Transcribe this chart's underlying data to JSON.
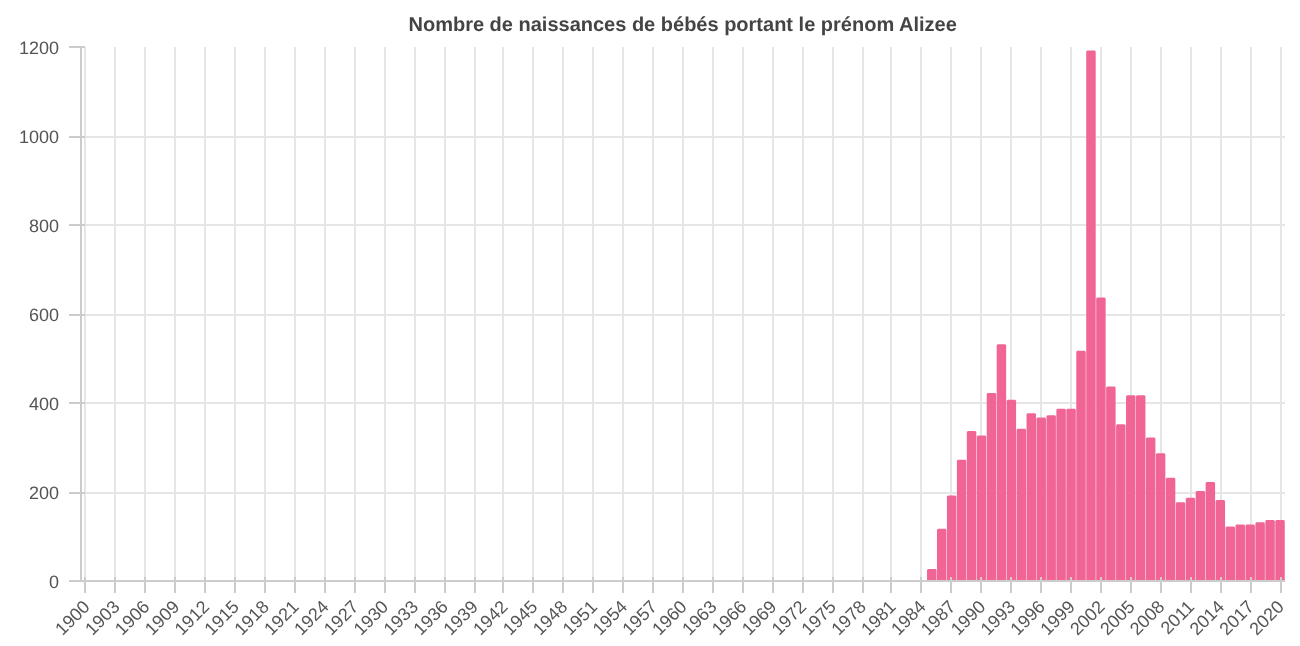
{
  "chart_data": {
    "type": "bar",
    "title": "Nombre de naissances de bébés portant le prénom Alizee",
    "x": [
      1900,
      1901,
      1902,
      1903,
      1904,
      1905,
      1906,
      1907,
      1908,
      1909,
      1910,
      1911,
      1912,
      1913,
      1914,
      1915,
      1916,
      1917,
      1918,
      1919,
      1920,
      1921,
      1922,
      1923,
      1924,
      1925,
      1926,
      1927,
      1928,
      1929,
      1930,
      1931,
      1932,
      1933,
      1934,
      1935,
      1936,
      1937,
      1938,
      1939,
      1940,
      1941,
      1942,
      1943,
      1944,
      1945,
      1946,
      1947,
      1948,
      1949,
      1950,
      1951,
      1952,
      1953,
      1954,
      1955,
      1956,
      1957,
      1958,
      1959,
      1960,
      1961,
      1962,
      1963,
      1964,
      1965,
      1966,
      1967,
      1968,
      1969,
      1970,
      1971,
      1972,
      1973,
      1974,
      1975,
      1976,
      1977,
      1978,
      1979,
      1980,
      1981,
      1982,
      1983,
      1984,
      1985,
      1986,
      1987,
      1988,
      1989,
      1990,
      1991,
      1992,
      1993,
      1994,
      1995,
      1996,
      1997,
      1998,
      1999,
      2000,
      2001,
      2002,
      2003,
      2004,
      2005,
      2006,
      2007,
      2008,
      2009,
      2010,
      2011,
      2012,
      2013,
      2014,
      2015,
      2016,
      2017,
      2018,
      2019,
      2020
    ],
    "values": [
      0,
      0,
      0,
      0,
      0,
      0,
      0,
      0,
      0,
      0,
      0,
      0,
      0,
      0,
      0,
      0,
      0,
      0,
      0,
      0,
      0,
      0,
      0,
      0,
      0,
      0,
      0,
      0,
      0,
      0,
      0,
      0,
      0,
      0,
      0,
      0,
      0,
      0,
      0,
      0,
      0,
      0,
      0,
      0,
      0,
      0,
      0,
      0,
      0,
      0,
      0,
      0,
      0,
      0,
      0,
      0,
      0,
      0,
      0,
      0,
      0,
      0,
      0,
      0,
      0,
      0,
      0,
      0,
      0,
      0,
      0,
      0,
      0,
      0,
      0,
      0,
      0,
      0,
      0,
      0,
      0,
      0,
      0,
      0,
      0,
      25,
      115,
      190,
      270,
      335,
      325,
      420,
      530,
      405,
      340,
      375,
      365,
      370,
      385,
      385,
      515,
      1190,
      635,
      435,
      350,
      415,
      415,
      320,
      285,
      230,
      175,
      185,
      200,
      220,
      180,
      120,
      125,
      125,
      130,
      135,
      135
    ],
    "color": "#f06595",
    "xlim": [
      1899.5,
      2020.5
    ],
    "xticks": [
      1900,
      1903,
      1906,
      1909,
      1912,
      1915,
      1918,
      1921,
      1924,
      1927,
      1930,
      1933,
      1936,
      1939,
      1942,
      1945,
      1948,
      1951,
      1954,
      1957,
      1960,
      1963,
      1966,
      1969,
      1972,
      1975,
      1978,
      1981,
      1984,
      1987,
      1990,
      1993,
      1996,
      1999,
      2002,
      2005,
      2008,
      2011,
      2014,
      2017,
      2020
    ],
    "ylim": [
      0,
      1200
    ],
    "yticks": [
      0,
      200,
      400,
      600,
      800,
      1000,
      1200
    ],
    "grid": true
  }
}
